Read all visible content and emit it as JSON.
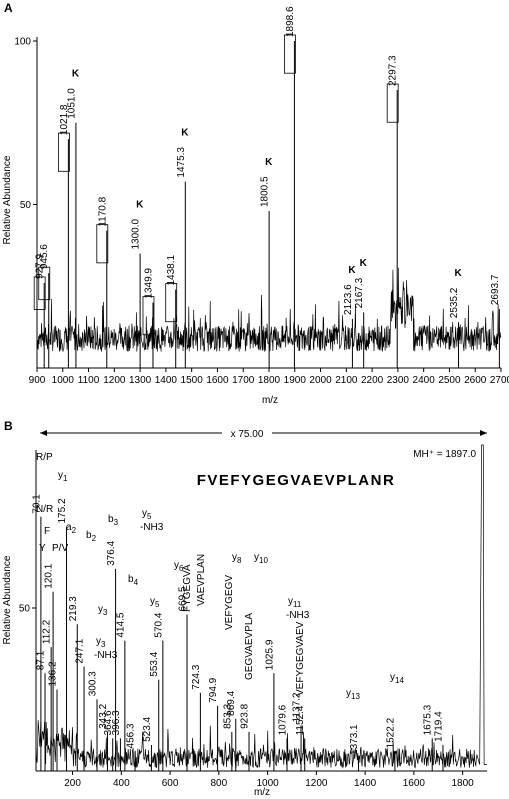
{
  "chart_data": [
    {
      "panel": "A",
      "type": "line",
      "xlabel": "m/z",
      "ylabel": "Relative Abundance",
      "xlim": [
        900,
        2700
      ],
      "ylim": [
        0,
        100
      ],
      "xticks": [
        "900",
        "1000",
        "1100",
        "1200",
        "1300",
        "1400",
        "1500",
        "1600",
        "1700",
        "1800",
        "1900",
        "2000",
        "2100",
        "2200",
        "2300",
        "2400",
        "2500",
        "2600",
        "2700"
      ],
      "yticks": [
        "100",
        "50"
      ],
      "peaks": [
        {
          "mz": 927.9,
          "y": 26,
          "label": "927.9",
          "boxed": true,
          "lysine": false
        },
        {
          "mz": 945.6,
          "y": 29,
          "label": "945.6",
          "boxed": true,
          "lysine": false
        },
        {
          "mz": 1021.8,
          "y": 70,
          "label": "1021.8",
          "boxed": true,
          "lysine": false
        },
        {
          "mz": 1051.0,
          "y": 75,
          "label": "1051.0",
          "boxed": false,
          "lysine": true
        },
        {
          "mz": 1170.8,
          "y": 42,
          "label": "1170.8",
          "boxed": true,
          "lysine": false
        },
        {
          "mz": 1300.0,
          "y": 35,
          "label": "1300.0",
          "boxed": false,
          "lysine": true
        },
        {
          "mz": 1349.9,
          "y": 20,
          "label": "1349.9",
          "boxed": true,
          "lysine": false
        },
        {
          "mz": 1438.1,
          "y": 24,
          "label": "1438.1",
          "boxed": true,
          "lysine": false
        },
        {
          "mz": 1475.3,
          "y": 57,
          "label": "1475.3",
          "boxed": false,
          "lysine": true
        },
        {
          "mz": 1800.5,
          "y": 48,
          "label": "1800.5",
          "boxed": false,
          "lysine": true
        },
        {
          "mz": 1898.6,
          "y": 100,
          "label": "1898.6",
          "boxed": true,
          "lysine": false
        },
        {
          "mz": 2123.6,
          "y": 15,
          "label": "2123.6",
          "boxed": false,
          "lysine": true
        },
        {
          "mz": 2167.3,
          "y": 17,
          "label": "2167.3",
          "boxed": false,
          "lysine": true
        },
        {
          "mz": 2297.3,
          "y": 85,
          "label": "2297.3",
          "boxed": true,
          "lysine": false
        },
        {
          "mz": 2535.2,
          "y": 14,
          "label": "2535.2",
          "boxed": false,
          "lysine": true
        },
        {
          "mz": 2693.7,
          "y": 18,
          "label": "2693.7",
          "boxed": false,
          "lysine": false
        }
      ],
      "lysine_marker": "K"
    },
    {
      "panel": "B",
      "type": "line",
      "xlabel": "m/z",
      "ylabel": "Relative Abundance",
      "xlim": [
        50,
        1900
      ],
      "ylim": [
        0,
        100
      ],
      "xticks": [
        "200",
        "400",
        "600",
        "800",
        "1000",
        "1200",
        "1400",
        "1600",
        "1800"
      ],
      "yticks": [
        "50"
      ],
      "scale_note": "x 75.00",
      "precursor": "MH⁺ = 1897.0",
      "sequence": "FVEFYGEGVAEVPLANR",
      "peaks": [
        {
          "mz": 70.1,
          "y": 78,
          "label": "70.1"
        },
        {
          "mz": 87.1,
          "y": 30,
          "label": "87.1"
        },
        {
          "mz": 112.2,
          "y": 38,
          "label": "112.2"
        },
        {
          "mz": 120.1,
          "y": 55,
          "label": "120.1"
        },
        {
          "mz": 136.2,
          "y": 25,
          "label": "136.2"
        },
        {
          "mz": 175.2,
          "y": 75,
          "label": "175.2"
        },
        {
          "mz": 219.3,
          "y": 45,
          "label": "219.3"
        },
        {
          "mz": 247.1,
          "y": 32,
          "label": "247.1"
        },
        {
          "mz": 300.3,
          "y": 22,
          "label": "300.3"
        },
        {
          "mz": 343.2,
          "y": 12,
          "label": "343.2"
        },
        {
          "mz": 364.6,
          "y": 10,
          "label": "364.6"
        },
        {
          "mz": 376.4,
          "y": 62,
          "label": "376.4"
        },
        {
          "mz": 396.3,
          "y": 10,
          "label": "396.3"
        },
        {
          "mz": 414.5,
          "y": 40,
          "label": "414.5"
        },
        {
          "mz": 456.3,
          "y": 6,
          "label": "456.3"
        },
        {
          "mz": 523.4,
          "y": 8,
          "label": "523.4"
        },
        {
          "mz": 553.4,
          "y": 28,
          "label": "553.4"
        },
        {
          "mz": 570.4,
          "y": 40,
          "label": "570.4"
        },
        {
          "mz": 669.5,
          "y": 48,
          "label": "669.5"
        },
        {
          "mz": 724.3,
          "y": 24,
          "label": "724.3"
        },
        {
          "mz": 794.9,
          "y": 20,
          "label": "794.9"
        },
        {
          "mz": 853.3,
          "y": 12,
          "label": "853.3"
        },
        {
          "mz": 869.4,
          "y": 16,
          "label": "869.4"
        },
        {
          "mz": 923.8,
          "y": 12,
          "label": "923.8"
        },
        {
          "mz": 1025.9,
          "y": 30,
          "label": "1025.9"
        },
        {
          "mz": 1079.6,
          "y": 10,
          "label": "1079.6"
        },
        {
          "mz": 1137.2,
          "y": 14,
          "label": "1137.2"
        },
        {
          "mz": 1152.4,
          "y": 10,
          "label": "1152.4"
        },
        {
          "mz": 1373.1,
          "y": 4,
          "label": "1373.1"
        },
        {
          "mz": 1522.2,
          "y": 6,
          "label": "1522.2"
        },
        {
          "mz": 1675.3,
          "y": 10,
          "label": "1675.3"
        },
        {
          "mz": 1719.4,
          "y": 8,
          "label": "1719.4"
        }
      ],
      "ion_annotations": [
        {
          "text": "R/P"
        },
        {
          "text": "N/R"
        },
        {
          "text": "F"
        },
        {
          "text": "Y"
        },
        {
          "text": "P/V"
        },
        {
          "text": "y1"
        },
        {
          "text": "a2"
        },
        {
          "text": "b2"
        },
        {
          "text": "b3"
        },
        {
          "text": "y3"
        },
        {
          "text": "y3 -NH3"
        },
        {
          "text": "b4"
        },
        {
          "text": "y5 -NH3"
        },
        {
          "text": "y5"
        },
        {
          "text": "y6"
        },
        {
          "text": "y8"
        },
        {
          "text": "y10"
        },
        {
          "text": "y11 -NH3"
        },
        {
          "text": "y13"
        },
        {
          "text": "y14"
        }
      ],
      "fragment_labels": [
        "FYGEGVA",
        "VAEVPLAN",
        "VEFYGEGV",
        "GEGVAEVPLA",
        "VEFYGEGVAEV"
      ]
    }
  ]
}
